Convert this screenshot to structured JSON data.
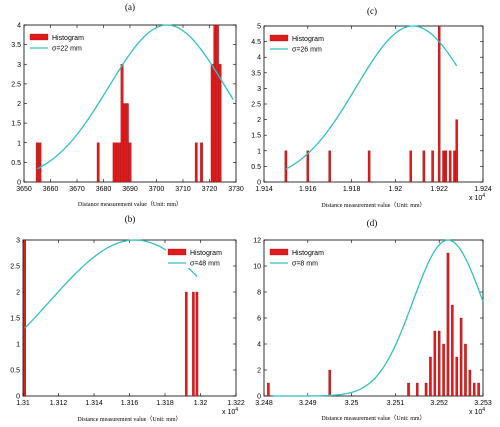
{
  "chart_data": [
    {
      "type": "bar",
      "panel_label": "(a)",
      "xlabel": "Distance measurement value（Unit: mm）",
      "ylabel": "",
      "xlim": [
        3650,
        3730
      ],
      "ylim": [
        0,
        4
      ],
      "xticks": [
        "3650",
        "3660",
        "3670",
        "3680",
        "3690",
        "3700",
        "3710",
        "3720",
        "3730"
      ],
      "yticks": [
        "0",
        "0.5",
        "1",
        "1.5",
        "2",
        "2.5",
        "3",
        "3.5",
        "4"
      ],
      "x_multiplier": "",
      "bar_width": 0.9,
      "bars": [
        [
          3655,
          1
        ],
        [
          3656,
          1
        ],
        [
          3678,
          1
        ],
        [
          3684,
          1
        ],
        [
          3685,
          1
        ],
        [
          3686,
          1
        ],
        [
          3687,
          3
        ],
        [
          3688,
          2
        ],
        [
          3689,
          2
        ],
        [
          3690,
          1
        ],
        [
          3715,
          1
        ],
        [
          3717,
          1
        ],
        [
          3721,
          3
        ],
        [
          3722,
          4
        ],
        [
          3723,
          4
        ],
        [
          3724,
          3
        ]
      ],
      "curve": {
        "mean": 3704,
        "sigma": 22,
        "peak": 4,
        "x_from": 3655,
        "x_to": 3729
      },
      "legend": [
        {
          "label": "Histogram"
        },
        {
          "label": "σ=22 mm"
        }
      ],
      "legend_position": "top-left"
    },
    {
      "type": "bar",
      "panel_label": "(c)",
      "xlabel": "Distance measurement value（Unit: mm）",
      "ylabel": "",
      "xlim": [
        1.914,
        1.924
      ],
      "ylim": [
        0,
        5
      ],
      "xticks": [
        "1.914",
        "1.916",
        "1.918",
        "1.92",
        "1.922",
        "1.924"
      ],
      "yticks": [
        "0",
        "0.5",
        "1",
        "1.5",
        "2",
        "2.5",
        "3",
        "3.5",
        "4",
        "4.5",
        "5"
      ],
      "x_multiplier": "x 10^4",
      "bar_width": 8e-05,
      "bars": [
        [
          1.915,
          1
        ],
        [
          1.916,
          1
        ],
        [
          1.917,
          1
        ],
        [
          1.9188,
          1
        ],
        [
          1.9207,
          1
        ],
        [
          1.9213,
          1
        ],
        [
          1.9217,
          1
        ],
        [
          1.922,
          5
        ],
        [
          1.9222,
          1
        ],
        [
          1.9223,
          1
        ],
        [
          1.9225,
          1
        ],
        [
          1.9227,
          1
        ],
        [
          1.9228,
          2
        ]
      ],
      "curve": {
        "mean": 1.9208,
        "sigma": 0.0026,
        "peak": 5,
        "x_from": 1.915,
        "x_to": 1.9228
      },
      "legend": [
        {
          "label": "Histogram"
        },
        {
          "label": "σ=26 mm"
        }
      ],
      "legend_position": "top-left"
    },
    {
      "type": "bar",
      "panel_label": "(b)",
      "xlabel": "Distance measurement value（Unit: mm）",
      "ylabel": "",
      "xlim": [
        1.31,
        1.322
      ],
      "ylim": [
        0,
        3
      ],
      "xticks": [
        "1.31",
        "1.312",
        "1.314",
        "1.316",
        "1.318",
        "1.32",
        "1.322"
      ],
      "yticks": [
        "0",
        "0.5",
        "1",
        "1.5",
        "2",
        "2.5",
        "3"
      ],
      "x_multiplier": "x 10^4",
      "bar_width": 0.0001,
      "bars": [
        [
          1.3101,
          3
        ],
        [
          1.3192,
          2
        ],
        [
          1.3196,
          2
        ],
        [
          1.3198,
          2
        ]
      ],
      "curve": {
        "mean": 1.3163,
        "sigma": 0.0048,
        "peak": 3,
        "x_from": 1.3101,
        "x_to": 1.3198
      },
      "legend": [
        {
          "label": "Histogram"
        },
        {
          "label": "σ=48 mm"
        }
      ],
      "legend_position": "top-right"
    },
    {
      "type": "bar",
      "panel_label": "(d)",
      "xlabel": "Distance measurement value（Unit: mm）",
      "ylabel": "",
      "xlim": [
        3.248,
        3.253
      ],
      "ylim": [
        0,
        12
      ],
      "xticks": [
        "3.248",
        "3.249",
        "3.25",
        "3.251",
        "3.252",
        "3.253"
      ],
      "yticks": [
        "0",
        "2",
        "4",
        "6",
        "8",
        "10",
        "12"
      ],
      "x_multiplier": "x 10^4",
      "bar_width": 4e-05,
      "bars": [
        [
          3.2481,
          1
        ],
        [
          3.2495,
          2
        ],
        [
          3.2513,
          1
        ],
        [
          3.2515,
          1
        ],
        [
          3.2517,
          1
        ],
        [
          3.2518,
          3
        ],
        [
          3.2519,
          5
        ],
        [
          3.252,
          5
        ],
        [
          3.2521,
          4
        ],
        [
          3.2522,
          11
        ],
        [
          3.2523,
          7
        ],
        [
          3.2524,
          3
        ],
        [
          3.2525,
          6
        ],
        [
          3.2526,
          4
        ],
        [
          3.2527,
          2
        ],
        [
          3.2528,
          1
        ],
        [
          3.2529,
          1
        ]
      ],
      "curve": {
        "mean": 3.2522,
        "sigma": 0.0008,
        "peak": 12,
        "x_from": 3.2482,
        "x_to": 3.253
      },
      "legend": [
        {
          "label": "Histogram"
        },
        {
          "label": "σ=8 mm"
        }
      ],
      "legend_position": "top-left"
    }
  ],
  "colors": {
    "bar": "#e31a1c",
    "curve": "#33c0c0",
    "axis": "#000000"
  }
}
